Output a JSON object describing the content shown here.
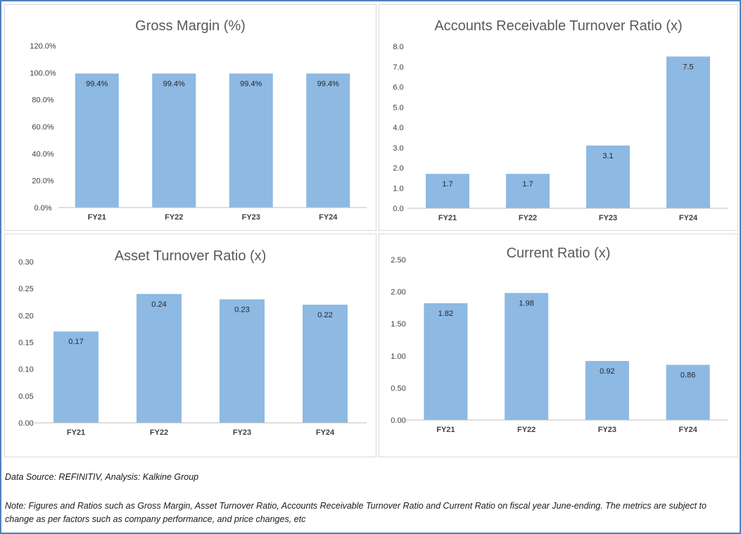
{
  "colors": {
    "bar": "#8db9e3",
    "axis": "#bfbfbf",
    "border": "#4f81bd"
  },
  "chart_data": [
    {
      "type": "bar",
      "title": "Gross Margin (%)",
      "categories": [
        "FY21",
        "FY22",
        "FY23",
        "FY24"
      ],
      "values": [
        99.4,
        99.4,
        99.4,
        99.4
      ],
      "value_labels": [
        "99.4%",
        "99.4%",
        "99.4%",
        "99.4%"
      ],
      "yticks": [
        "0.0%",
        "20.0%",
        "40.0%",
        "60.0%",
        "80.0%",
        "100.0%",
        "120.0%"
      ],
      "ylim": [
        0,
        120
      ],
      "grid": false,
      "legend": "none"
    },
    {
      "type": "bar",
      "title": "Accounts Receivable Turnover Ratio (x)",
      "categories": [
        "FY21",
        "FY22",
        "FY23",
        "FY24"
      ],
      "values": [
        1.7,
        1.7,
        3.1,
        7.5
      ],
      "value_labels": [
        "1.7",
        "1.7",
        "3.1",
        "7.5"
      ],
      "yticks": [
        "0.0",
        "1.0",
        "2.0",
        "3.0",
        "4.0",
        "5.0",
        "6.0",
        "7.0",
        "8.0"
      ],
      "ylim": [
        0,
        8
      ],
      "grid": false,
      "legend": "none"
    },
    {
      "type": "bar",
      "title": "Asset Turnover Ratio (x)",
      "categories": [
        "FY21",
        "FY22",
        "FY23",
        "FY24"
      ],
      "values": [
        0.17,
        0.24,
        0.23,
        0.22
      ],
      "value_labels": [
        "0.17",
        "0.24",
        "0.23",
        "0.22"
      ],
      "yticks": [
        "0.00",
        "0.05",
        "0.10",
        "0.15",
        "0.20",
        "0.25",
        "0.30"
      ],
      "ylim": [
        0,
        0.3
      ],
      "grid": false,
      "legend": "none"
    },
    {
      "type": "bar",
      "title": "Current Ratio (x)",
      "categories": [
        "FY21",
        "FY22",
        "FY23",
        "FY24"
      ],
      "values": [
        1.82,
        1.98,
        0.92,
        0.86
      ],
      "value_labels": [
        "1.82",
        "1.98",
        "0.92",
        "0.86"
      ],
      "yticks": [
        "0.00",
        "0.50",
        "1.00",
        "1.50",
        "2.00",
        "2.50"
      ],
      "ylim": [
        0,
        2.5
      ],
      "grid": false,
      "legend": "none"
    }
  ],
  "footer": {
    "source": "Data Source: REFINITIV, Analysis: Kalkine Group",
    "note": "Note: Figures and Ratios such as Gross Margin, Asset Turnover Ratio, Accounts Receivable Turnover Ratio and Current Ratio on fiscal year June-ending. The metrics are subject to change as per factors such as company performance, and price changes, etc"
  }
}
